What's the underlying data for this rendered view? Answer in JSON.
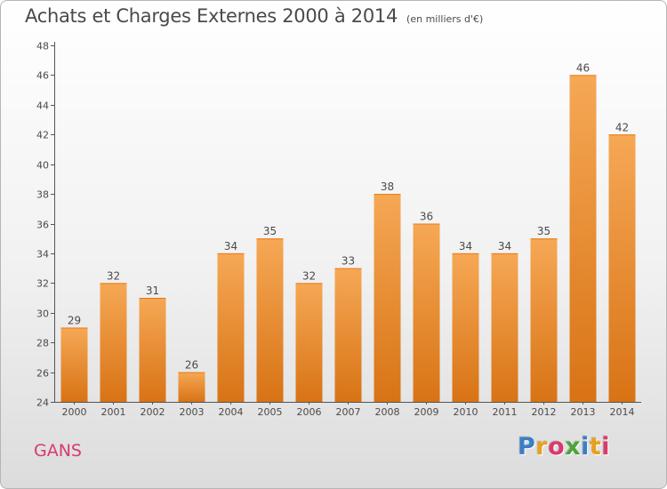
{
  "header": {
    "title": "Achats et Charges Externes 2000 à 2014",
    "subtitle": "(en milliers d'€)"
  },
  "footer": {
    "commune": "GANS",
    "logo_text": "Proxiti",
    "logo_colors": [
      "#3a7fc4",
      "#e8a020",
      "#d93a6a",
      "#4aa53a",
      "#3a7fc4",
      "#e8a020",
      "#d93a6a"
    ]
  },
  "colors": {
    "bar_top": "#f6a855",
    "bar_bottom": "#d87315",
    "axis": "#555555",
    "text": "#4a4a4a"
  },
  "chart_data": {
    "type": "bar",
    "categories": [
      "2000",
      "2001",
      "2002",
      "2003",
      "2004",
      "2005",
      "2006",
      "2007",
      "2008",
      "2009",
      "2010",
      "2011",
      "2012",
      "2013",
      "2014"
    ],
    "values": [
      29,
      32,
      31,
      26,
      34,
      35,
      32,
      33,
      38,
      36,
      34,
      34,
      35,
      46,
      42
    ],
    "ylim": [
      24,
      48
    ],
    "yticks": [
      24,
      26,
      28,
      30,
      32,
      34,
      36,
      38,
      40,
      42,
      44,
      46,
      48
    ],
    "grid": false
  }
}
